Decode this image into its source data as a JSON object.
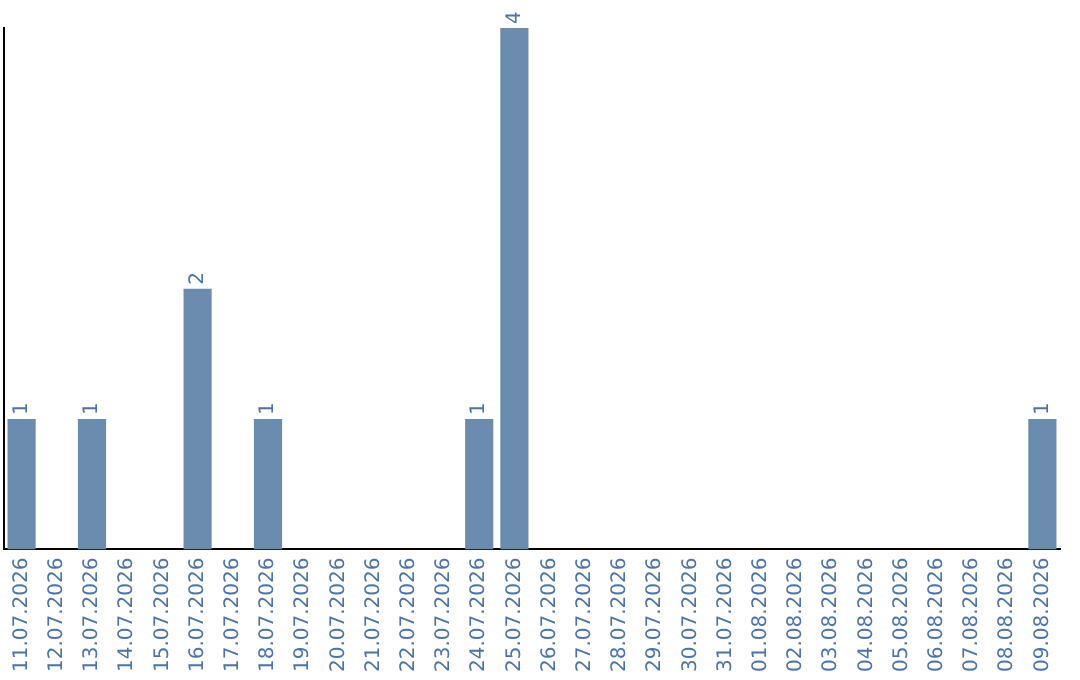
{
  "chart_data": {
    "type": "bar",
    "categories": [
      "11.07.2026",
      "12.07.2026",
      "13.07.2026",
      "14.07.2026",
      "15.07.2026",
      "16.07.2026",
      "17.07.2026",
      "18.07.2026",
      "19.07.2026",
      "20.07.2026",
      "21.07.2026",
      "22.07.2026",
      "23.07.2026",
      "24.07.2026",
      "25.07.2026",
      "26.07.2026",
      "27.07.2026",
      "28.07.2026",
      "29.07.2026",
      "30.07.2026",
      "31.07.2026",
      "01.08.2026",
      "02.08.2026",
      "03.08.2026",
      "04.08.2026",
      "05.08.2026",
      "06.08.2026",
      "07.08.2026",
      "08.08.2026",
      "09.08.2026"
    ],
    "values": [
      1,
      0,
      1,
      0,
      0,
      2,
      0,
      1,
      0,
      0,
      0,
      0,
      0,
      1,
      4,
      0,
      0,
      0,
      0,
      0,
      0,
      0,
      0,
      0,
      0,
      0,
      0,
      0,
      0,
      1
    ],
    "value_labels": [
      "1",
      null,
      "1",
      null,
      null,
      "2",
      null,
      "1",
      null,
      null,
      null,
      null,
      null,
      "1",
      "4",
      null,
      null,
      null,
      null,
      null,
      null,
      null,
      null,
      null,
      null,
      null,
      null,
      null,
      null,
      "1"
    ],
    "color": "#6b8cae",
    "grid": false,
    "legend": false
  }
}
